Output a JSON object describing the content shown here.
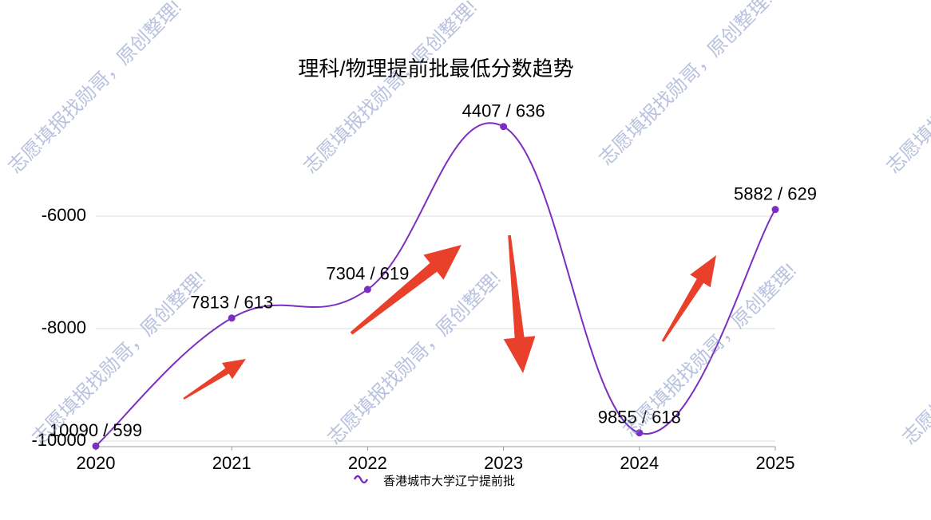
{
  "chart_data": {
    "type": "line",
    "title": "理科/物理提前批最低分数趋势",
    "categories": [
      "2020",
      "2021",
      "2022",
      "2023",
      "2024",
      "2025"
    ],
    "series": [
      {
        "name": "香港城市大学辽宁提前批",
        "color": "#7b2fc0",
        "values": [
          -10090,
          -7813,
          -7304,
          -4407,
          -9855,
          -5882
        ],
        "value_labels": [
          "10090 / 599",
          "7813 / 613",
          "7304 / 619",
          "4407 / 636",
          "9855 / 618",
          "5882 / 629"
        ]
      }
    ],
    "ylim": [
      -10100,
      -4000
    ],
    "yticks": [
      -10000,
      -8000,
      -6000
    ],
    "grid": true
  },
  "watermark": "志愿填报找勋哥，原创整理!"
}
